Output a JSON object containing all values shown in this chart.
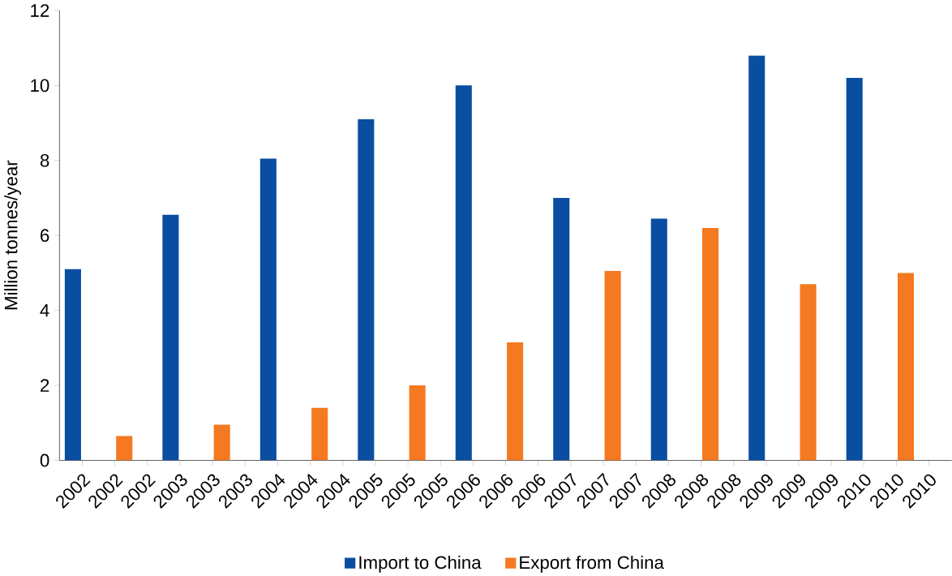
{
  "chart_data": {
    "type": "bar",
    "ylabel": "Million tonnes/year",
    "categories": [
      "2002",
      "2002",
      "2002",
      "2003",
      "2003",
      "2003",
      "2004",
      "2004",
      "2004",
      "2005",
      "2005",
      "2005",
      "2006",
      "2006",
      "2006",
      "2007",
      "2007",
      "2007",
      "2008",
      "2008",
      "2008",
      "2009",
      "2009",
      "2009",
      "2010",
      "2010",
      "2010"
    ],
    "series": [
      {
        "name": "Import to China",
        "color": "#0a4ea2",
        "values": [
          5.1,
          null,
          null,
          6.55,
          null,
          null,
          8.05,
          null,
          null,
          9.1,
          null,
          null,
          10.0,
          null,
          null,
          7.0,
          null,
          null,
          6.45,
          null,
          null,
          10.8,
          null,
          null,
          10.2,
          null,
          null
        ]
      },
      {
        "name": "Export from China",
        "color": "#f47920",
        "values": [
          null,
          0.65,
          null,
          null,
          0.95,
          null,
          null,
          1.4,
          null,
          null,
          2.0,
          null,
          null,
          3.15,
          null,
          null,
          5.05,
          null,
          null,
          6.2,
          null,
          null,
          4.7,
          null,
          null,
          5.0,
          null
        ]
      }
    ],
    "ylim": [
      0,
      12
    ],
    "yticks": [
      0,
      2,
      4,
      6,
      8,
      10,
      12
    ],
    "grid": false,
    "legend": "bottom"
  }
}
